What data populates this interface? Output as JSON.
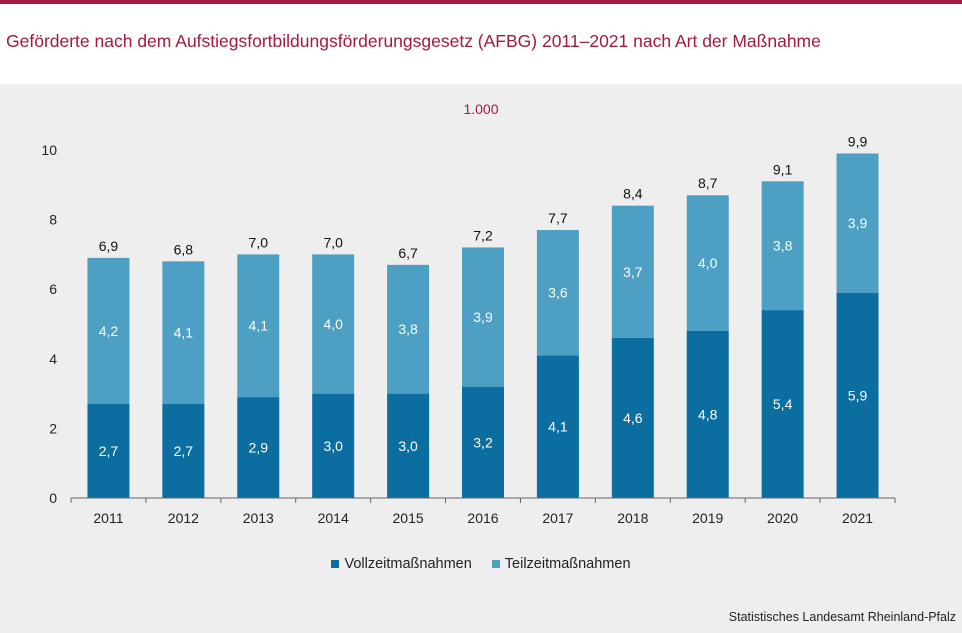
{
  "title": "Geförderte nach dem Aufstiegsfortbildungsförderungsgesetz (AFBG) 2011–2021 nach Art der Maßnahme",
  "unit_label": "1.000",
  "source": "Statistisches Landesamt Rheinland-Pfalz",
  "colors": {
    "accent": "#a31a3f",
    "vollzeit": "#0c6ea0",
    "teilzeit": "#4d9fc4",
    "background": "#eeeeee"
  },
  "chart_data": {
    "type": "bar",
    "stacked": true,
    "categories": [
      "2011",
      "2012",
      "2013",
      "2014",
      "2015",
      "2016",
      "2017",
      "2018",
      "2019",
      "2020",
      "2021"
    ],
    "series": [
      {
        "name": "Vollzeitmaßnahmen",
        "values": [
          2.7,
          2.7,
          2.9,
          3.0,
          3.0,
          3.2,
          4.1,
          4.6,
          4.8,
          5.4,
          5.9
        ]
      },
      {
        "name": "Teilzeitmaßnahmen",
        "values": [
          4.2,
          4.1,
          4.1,
          4.0,
          3.8,
          3.9,
          3.6,
          3.7,
          4.0,
          3.8,
          3.9
        ]
      }
    ],
    "totals": [
      6.9,
      6.8,
      7.0,
      7.0,
      6.7,
      7.2,
      7.7,
      8.4,
      8.7,
      9.1,
      9.9
    ],
    "yticks": [
      0,
      2,
      4,
      6,
      8,
      10
    ],
    "ylim": [
      0,
      10
    ],
    "grid": false,
    "legend_position": "bottom-center",
    "decimal_separator": ","
  }
}
